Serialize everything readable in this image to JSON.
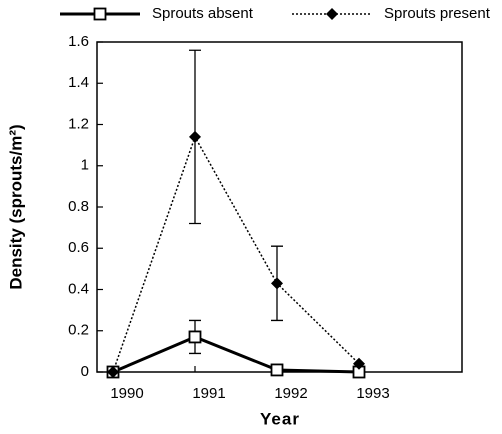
{
  "chart_data": {
    "type": "line",
    "xlabel": "Year",
    "ylabel": "Density (sprouts/m²)",
    "categories": [
      "1990",
      "1991",
      "1992",
      "1993"
    ],
    "series": [
      {
        "name": "Sprouts absent",
        "color": "#000000",
        "style": "solid",
        "marker": "square",
        "values": [
          0,
          0.17,
          0.01,
          0
        ],
        "errors": [
          null,
          0.08,
          null,
          null
        ]
      },
      {
        "name": "Sprouts present",
        "color": "#000000",
        "style": "dotted",
        "marker": "diamond",
        "values": [
          0,
          1.14,
          0.43,
          0.04
        ],
        "errors": [
          null,
          0.42,
          0.18,
          null
        ]
      }
    ],
    "ylim": [
      0,
      1.6
    ],
    "yticks": [
      0,
      0.2,
      0.4,
      0.6,
      0.8,
      1,
      1.2,
      1.4,
      1.6
    ],
    "legend": "top"
  }
}
